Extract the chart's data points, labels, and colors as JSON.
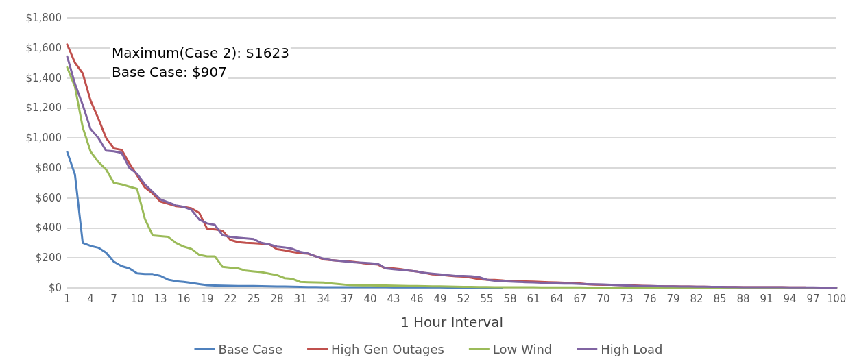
{
  "chart_data": {
    "type": "line",
    "xlabel": "1 Hour Interval",
    "annotations": [
      "Maximum(Case 2): $1623",
      "Base Case: $907"
    ],
    "categories": [
      "1",
      null,
      null,
      "4",
      null,
      null,
      "7",
      null,
      null,
      "10",
      null,
      null,
      "13",
      null,
      null,
      "16",
      null,
      null,
      "19",
      null,
      null,
      "22",
      null,
      null,
      "25",
      null,
      null,
      "28",
      null,
      null,
      "31",
      null,
      null,
      "34",
      null,
      null,
      "37",
      null,
      null,
      "40",
      null,
      null,
      "43",
      null,
      null,
      "46",
      null,
      null,
      "49",
      null,
      null,
      "52",
      null,
      null,
      "55",
      null,
      null,
      "58",
      null,
      null,
      "61",
      null,
      null,
      "64",
      null,
      null,
      "67",
      null,
      null,
      "70",
      null,
      null,
      "73",
      null,
      null,
      "76",
      null,
      null,
      "79",
      null,
      null,
      "82",
      null,
      null,
      "85",
      null,
      null,
      "88",
      null,
      null,
      "91",
      null,
      null,
      "94",
      null,
      null,
      "97",
      null,
      null,
      "100"
    ],
    "series": [
      {
        "name": "Base Case",
        "color": "#4f81bd",
        "values": [
          907,
          755,
          300,
          280,
          268,
          235,
          175,
          145,
          130,
          97,
          93,
          92,
          80,
          55,
          45,
          40,
          33,
          25,
          18,
          16,
          15,
          14,
          13,
          12,
          12,
          11,
          10,
          9,
          9,
          8,
          7,
          6,
          6,
          5,
          5,
          5,
          4,
          4,
          4,
          4,
          4,
          4,
          3,
          3,
          3,
          3,
          3,
          3,
          3,
          2,
          2,
          2,
          2,
          2,
          2,
          2,
          2,
          null,
          null,
          null,
          null,
          null,
          null,
          null,
          null,
          null,
          null,
          null,
          null,
          null,
          null,
          null,
          null,
          null,
          null,
          null,
          null,
          null,
          null,
          null,
          null,
          null,
          null,
          null,
          null,
          null,
          null,
          null,
          null,
          null,
          null,
          null,
          null,
          null,
          null,
          null,
          null,
          null,
          null,
          null
        ]
      },
      {
        "name": "High Gen Outages",
        "color": "#c0504d",
        "values": [
          1623,
          1500,
          1430,
          1250,
          1130,
          1000,
          930,
          920,
          830,
          750,
          670,
          630,
          575,
          560,
          545,
          540,
          530,
          500,
          395,
          390,
          380,
          320,
          305,
          300,
          298,
          295,
          290,
          258,
          250,
          240,
          232,
          228,
          210,
          190,
          185,
          180,
          178,
          172,
          165,
          160,
          155,
          130,
          130,
          125,
          115,
          110,
          100,
          90,
          88,
          82,
          78,
          75,
          68,
          58,
          55,
          54,
          50,
          45,
          44,
          43,
          42,
          40,
          38,
          36,
          34,
          32,
          30,
          24,
          22,
          21,
          20,
          19,
          18,
          16,
          14,
          12,
          11,
          10,
          10,
          9,
          9,
          8,
          8,
          7,
          7,
          6,
          6,
          5,
          5,
          5,
          4,
          4,
          4,
          3,
          3,
          3,
          null,
          null,
          null,
          null
        ]
      },
      {
        "name": "Low Wind",
        "color": "#9bbb59",
        "values": [
          1470,
          1340,
          1070,
          910,
          840,
          790,
          700,
          690,
          675,
          660,
          460,
          350,
          345,
          340,
          300,
          275,
          260,
          220,
          210,
          210,
          140,
          135,
          130,
          115,
          110,
          105,
          95,
          85,
          65,
          60,
          40,
          38,
          37,
          35,
          30,
          25,
          20,
          18,
          17,
          17,
          16,
          16,
          15,
          14,
          12,
          12,
          11,
          10,
          10,
          9,
          8,
          7,
          7,
          6,
          6,
          5,
          5,
          5,
          4,
          4,
          4,
          3,
          3,
          3,
          3,
          3,
          3,
          2,
          2,
          2,
          2,
          2,
          2,
          2,
          2,
          1,
          1,
          1,
          1,
          1,
          1,
          1,
          1,
          1,
          1,
          1,
          1,
          1,
          1,
          1,
          0,
          0,
          0,
          0,
          0,
          0,
          0,
          0,
          0,
          0
        ]
      },
      {
        "name": "High Load",
        "color": "#8064a2",
        "values": [
          1543,
          1360,
          1220,
          1060,
          1000,
          915,
          910,
          900,
          800,
          760,
          690,
          640,
          590,
          570,
          550,
          540,
          520,
          455,
          430,
          420,
          350,
          340,
          335,
          330,
          325,
          300,
          290,
          275,
          270,
          260,
          240,
          230,
          210,
          195,
          185,
          180,
          175,
          170,
          168,
          165,
          160,
          130,
          125,
          120,
          115,
          110,
          100,
          95,
          90,
          85,
          80,
          80,
          78,
          72,
          55,
          48,
          45,
          42,
          40,
          38,
          36,
          34,
          32,
          30,
          29,
          28,
          26,
          25,
          24,
          23,
          20,
          18,
          16,
          14,
          13,
          12,
          11,
          10,
          10,
          9,
          9,
          8,
          8,
          7,
          7,
          6,
          6,
          5,
          5,
          5,
          4,
          4,
          4,
          3,
          3,
          3,
          3,
          2,
          2,
          2
        ]
      }
    ],
    "ylim": [
      0,
      1800
    ],
    "yticks": [
      {
        "value": 0,
        "label": "$0"
      },
      {
        "value": 200,
        "label": "$200"
      },
      {
        "value": 400,
        "label": "$400"
      },
      {
        "value": 600,
        "label": "$600"
      },
      {
        "value": 800,
        "label": "$800"
      },
      {
        "value": 1000,
        "label": "$1,000"
      },
      {
        "value": 1200,
        "label": "$1,200"
      },
      {
        "value": 1400,
        "label": "$1,400"
      },
      {
        "value": 1600,
        "label": "$1,600"
      },
      {
        "value": 1800,
        "label": "$1,800"
      }
    ],
    "grid": "y",
    "legend": "bottom",
    "marker": "none",
    "line_style": "solid"
  }
}
